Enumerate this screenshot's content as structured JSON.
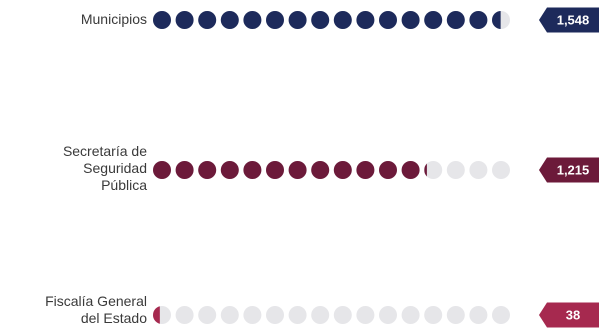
{
  "chart_data": {
    "type": "pictogram",
    "title": "",
    "unit_per_dot": 100,
    "dots_per_row": 16,
    "empty_color": "#e6e6e9",
    "categories": [
      {
        "label_lines": [
          "Municipios"
        ],
        "value": 1548,
        "value_label": "1,548",
        "color": "#1d2a5b"
      },
      {
        "label_lines": [
          "Secretaría de",
          "Seguridad",
          "Pública"
        ],
        "value": 1215,
        "value_label": "1,215",
        "color": "#6c1a3a"
      },
      {
        "label_lines": [
          "Fiscalía General",
          "del Estado"
        ],
        "value": 38,
        "value_label": "38",
        "color": "#a6294f"
      }
    ]
  }
}
